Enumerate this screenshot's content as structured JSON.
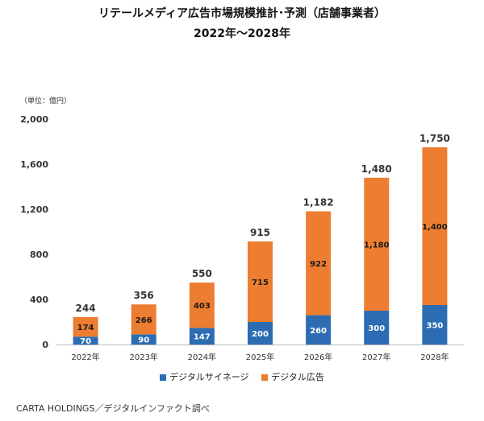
{
  "chart_data": {
    "type": "bar",
    "stacked": true,
    "title": "リテールメディア広告市場規模推計･予測（店舗事業者）",
    "subtitle": "2022年～2028年",
    "unit_label": "（単位：億円）",
    "categories": [
      "2022年",
      "2023年",
      "2024年",
      "2025年",
      "2026年",
      "2027年",
      "2028年"
    ],
    "series": [
      {
        "name": "デジタルサイネージ",
        "color": "#2b6cb3",
        "values": [
          70,
          90,
          147,
          200,
          260,
          300,
          350
        ]
      },
      {
        "name": "デジタル広告",
        "color": "#ed7d31",
        "values": [
          174,
          266,
          403,
          715,
          922,
          1180,
          1400
        ]
      }
    ],
    "series_labels": [
      [
        "70",
        "90",
        "147",
        "200",
        "260",
        "300",
        "350"
      ],
      [
        "174",
        "266",
        "403",
        "715",
        "922",
        "1,180",
        "1,400"
      ]
    ],
    "totals": [
      244,
      356,
      550,
      915,
      1182,
      1480,
      1750
    ],
    "total_labels": [
      "244",
      "356",
      "550",
      "915",
      "1,182",
      "1,480",
      "1,750"
    ],
    "ylim": [
      0,
      2000
    ],
    "yticks": [
      0,
      400,
      800,
      1200,
      1600,
      2000
    ],
    "ytick_labels": [
      "0",
      "400",
      "800",
      "1,200",
      "1,600",
      "2,000"
    ],
    "legend_position": "bottom",
    "grid": false,
    "xlabel": "",
    "ylabel": ""
  },
  "source": "CARTA HOLDINGS／デジタルインファクト調べ"
}
